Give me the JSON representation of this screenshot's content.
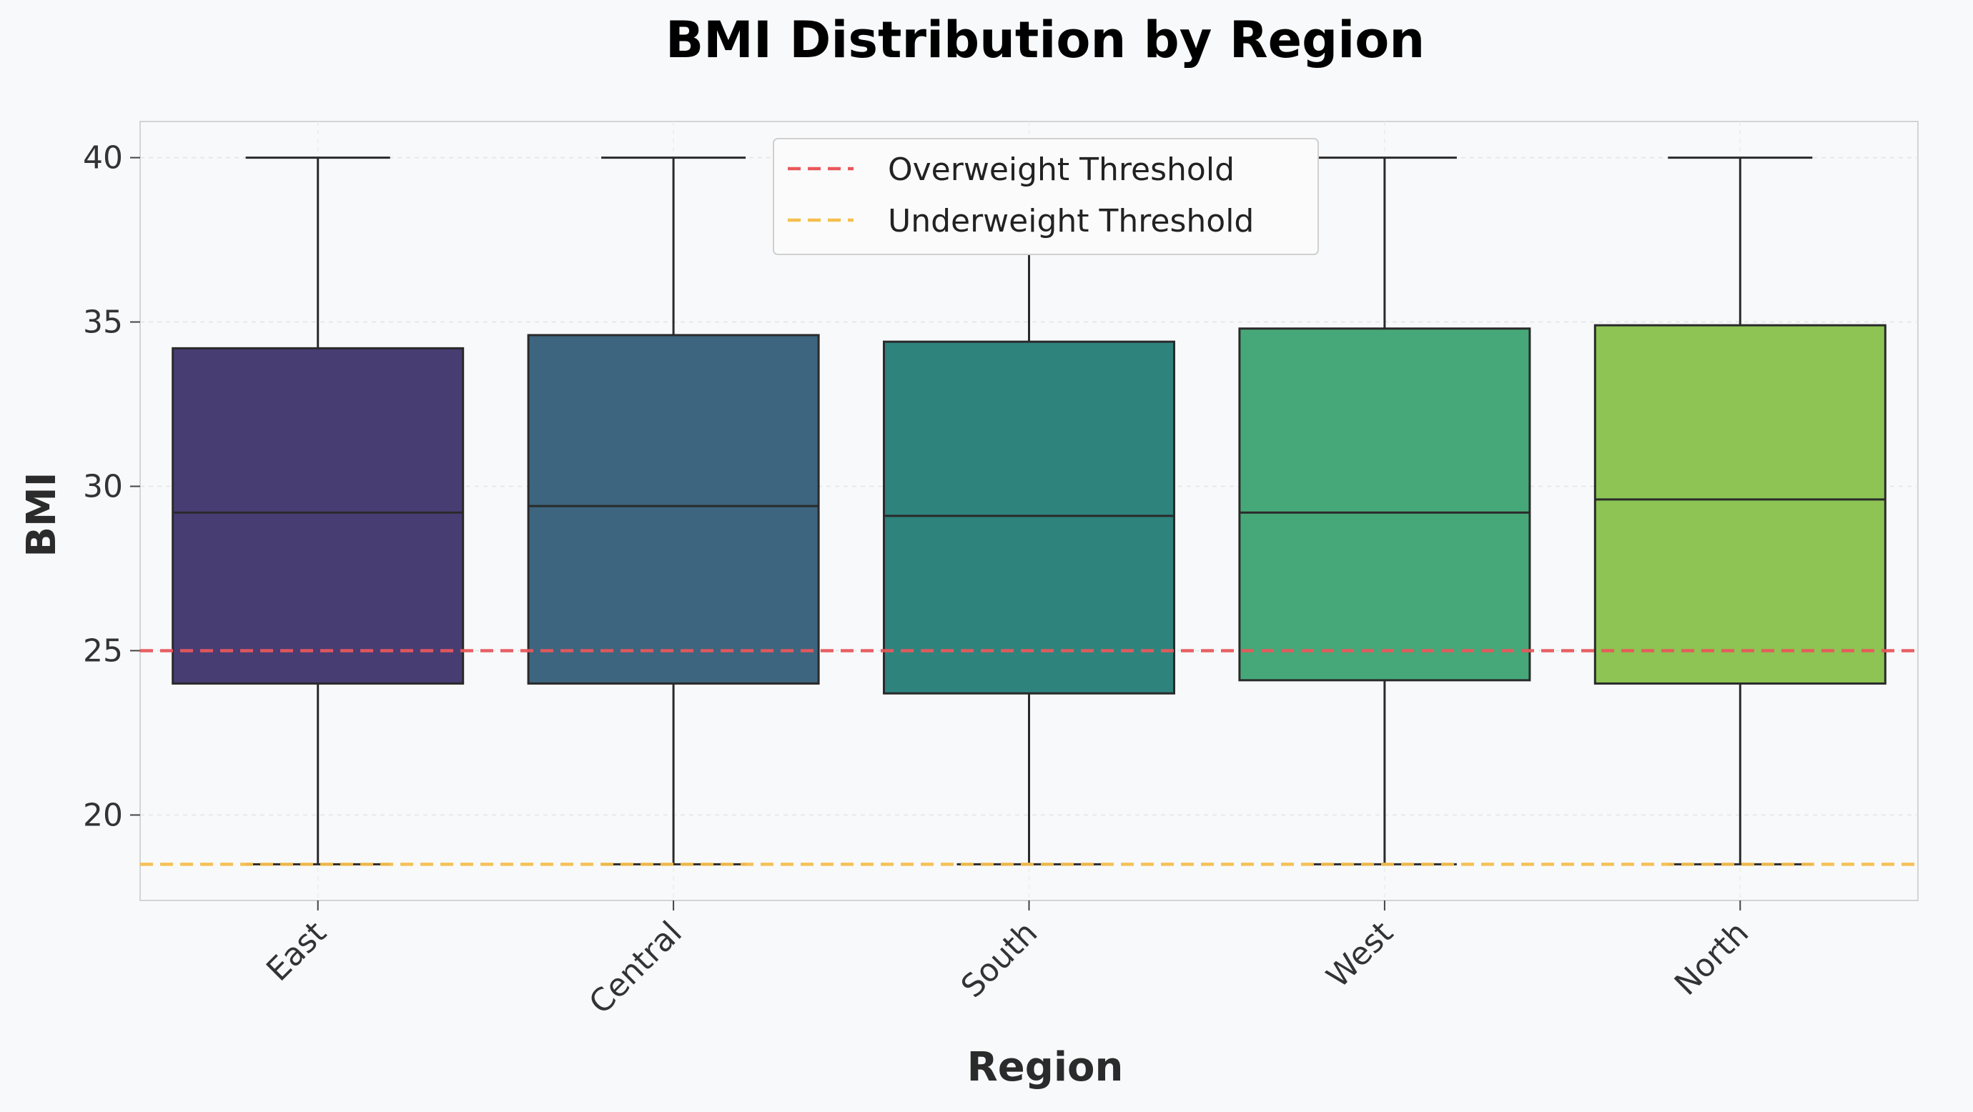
{
  "chart_data": {
    "type": "box",
    "title": "BMI Distribution by Region",
    "xlabel": "Region",
    "ylabel": "BMI",
    "ylim": [
      17.4,
      41.1
    ],
    "yticks": [
      20,
      25,
      30,
      35,
      40
    ],
    "grid": true,
    "legend_position": "upper-center",
    "categories": [
      "East",
      "Central",
      "South",
      "West",
      "North"
    ],
    "boxes": [
      {
        "category": "East",
        "min": 18.5,
        "q1": 24.0,
        "median": 29.2,
        "q3": 34.2,
        "max": 40.0,
        "color": "#483d73"
      },
      {
        "category": "Central",
        "min": 18.5,
        "q1": 24.0,
        "median": 29.4,
        "q3": 34.6,
        "max": 40.0,
        "color": "#3d657f"
      },
      {
        "category": "South",
        "min": 18.5,
        "q1": 23.7,
        "median": 29.1,
        "q3": 34.4,
        "max": 40.0,
        "color": "#2e837d"
      },
      {
        "category": "West",
        "min": 18.5,
        "q1": 24.1,
        "median": 29.2,
        "q3": 34.8,
        "max": 40.0,
        "color": "#46a878"
      },
      {
        "category": "North",
        "min": 18.5,
        "q1": 24.0,
        "median": 29.6,
        "q3": 34.9,
        "max": 40.0,
        "color": "#8dc453"
      }
    ],
    "reference_lines": [
      {
        "name": "Overweight Threshold",
        "y": 25.0,
        "color": "#e8585c"
      },
      {
        "name": "Underweight Threshold",
        "y": 18.5,
        "color": "#f5bf4f"
      }
    ]
  }
}
